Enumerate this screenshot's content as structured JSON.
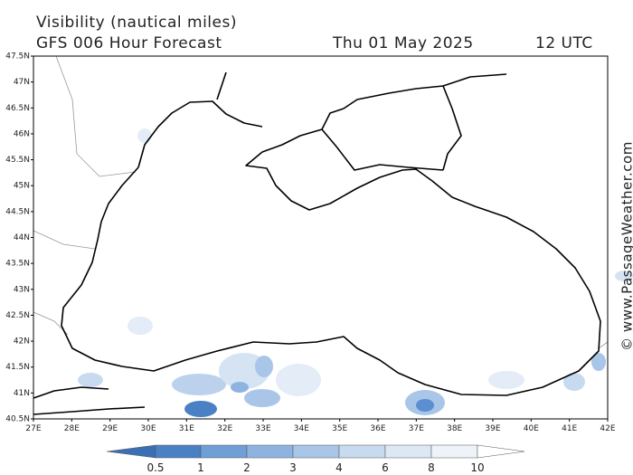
{
  "header": {
    "title": "Visibility (nautical miles)",
    "subtitle": "GFS 006 Hour Forecast",
    "date": "Thu 01 May 2025",
    "time": "12 UTC"
  },
  "map": {
    "lat_labels": [
      "47.5N",
      "47N",
      "46.5N",
      "46N",
      "45.5N",
      "45N",
      "44.5N",
      "44N",
      "43.5N",
      "43N",
      "42.5N",
      "42N",
      "41.5N",
      "41N",
      "40.5N"
    ],
    "lon_labels": [
      "27E",
      "28E",
      "29E",
      "30E",
      "31E",
      "32E",
      "33E",
      "34E",
      "35E",
      "36E",
      "37E",
      "38E",
      "39E",
      "40E",
      "41E",
      "42E"
    ]
  },
  "colorbar": {
    "labels": [
      0.5,
      1,
      2,
      3,
      4,
      6,
      8,
      10
    ]
  },
  "watermark": "© www.PassageWeather.com"
}
